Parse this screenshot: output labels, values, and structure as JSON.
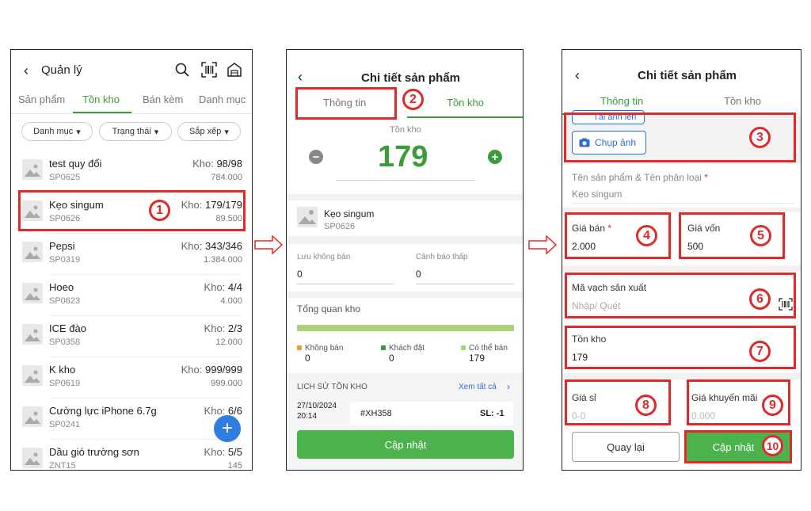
{
  "screen1": {
    "title": "Quản lý",
    "tabs": [
      "Sản phẩm",
      "Tồn kho",
      "Bán kèm",
      "Danh mục"
    ],
    "filters": [
      "Danh mục",
      "Trạng thái",
      "Sắp xếp"
    ],
    "products": [
      {
        "name": "test quy đổi",
        "code": "SP0625",
        "stock_label": "Kho:",
        "stock": "98/98",
        "price": "784.000"
      },
      {
        "name": "Kẹo singum",
        "code": "SP0626",
        "stock_label": "Kho:",
        "stock": "179/179",
        "price": "89.500"
      },
      {
        "name": "Pepsi",
        "code": "SP0319",
        "stock_label": "Kho:",
        "stock": "343/346",
        "price": "1.384.000"
      },
      {
        "name": "Hoeo",
        "code": "SP0623",
        "stock_label": "Kho:",
        "stock": "4/4",
        "price": "4.000"
      },
      {
        "name": "ICE đào",
        "code": "SP0358",
        "stock_label": "Kho:",
        "stock": "2/3",
        "price": "12.000"
      },
      {
        "name": "K kho",
        "code": "SP0619",
        "stock_label": "Kho:",
        "stock": "999/999",
        "price": "999.000"
      },
      {
        "name": "Cường lực iPhone 6.7g",
        "code": "SP0241",
        "stock_label": "Kho:",
        "stock": "6/6",
        "price": ""
      },
      {
        "name": "Dầu gió trường sơn",
        "code": "ZNT15",
        "stock_label": "Kho:",
        "stock": "5/5",
        "price": "145"
      }
    ],
    "fab": "+"
  },
  "screen2": {
    "title": "Chi tiết sản phẩm",
    "tabs": [
      "Thông tin",
      "Tồn kho"
    ],
    "stock_label": "Tồn kho",
    "stock_value": "179",
    "product_name": "Kẹo singum",
    "product_code": "SP0626",
    "luu_khong_ban_label": "Lưu không bán",
    "luu_khong_ban_value": "0",
    "canh_bao_label": "Cảnh báo thấp",
    "canh_bao_value": "0",
    "overview_label": "Tổng quan kho",
    "legend": [
      {
        "label": "Không bán",
        "value": "0",
        "color": "#e8a23a"
      },
      {
        "label": "Khách đặt",
        "value": "0",
        "color": "#3c9c3c"
      },
      {
        "label": "Có thể bán",
        "value": "179",
        "color": "#a8d27a"
      }
    ],
    "history_label": "LỊCH SỬ TỒN KHO",
    "see_all": "Xem tất cả",
    "history_date": "27/10/2024",
    "history_time": "20:14",
    "history_code": "#XH358",
    "history_qty": "SL: -1",
    "update_btn": "Cập nhật"
  },
  "screen3": {
    "title": "Chi tiết sản phẩm",
    "tabs": [
      "Thông tin",
      "Tồn kho"
    ],
    "upload_btn": "Tải ảnh lên",
    "photo_btn": "Chụp ảnh",
    "name_label": "Tên sản phẩm & Tên phân loại",
    "name_value": "Kẹo singum",
    "sell_price_label": "Giá bán",
    "sell_price_value": "2.000",
    "cost_label": "Giá vốn",
    "cost_value": "500",
    "barcode_label": "Mã vạch sản xuất",
    "barcode_placeholder": "Nhập/ Quét",
    "stock_label": "Tồn kho",
    "stock_value": "179",
    "wholesale_label": "Giá sỉ",
    "wholesale_placeholder": "0-0",
    "promo_label": "Giá khuyến mãi",
    "promo_placeholder": "0.000",
    "back_btn": "Quay lại",
    "update_btn": "Cập nhật",
    "required_mark": "*"
  },
  "annotations": [
    "1",
    "2",
    "3",
    "4",
    "5",
    "6",
    "7",
    "8",
    "9",
    "10"
  ],
  "colors": {
    "accent_green": "#3c9c3c",
    "annotation_red": "#e02a2a",
    "fab_blue": "#2f7de0"
  }
}
